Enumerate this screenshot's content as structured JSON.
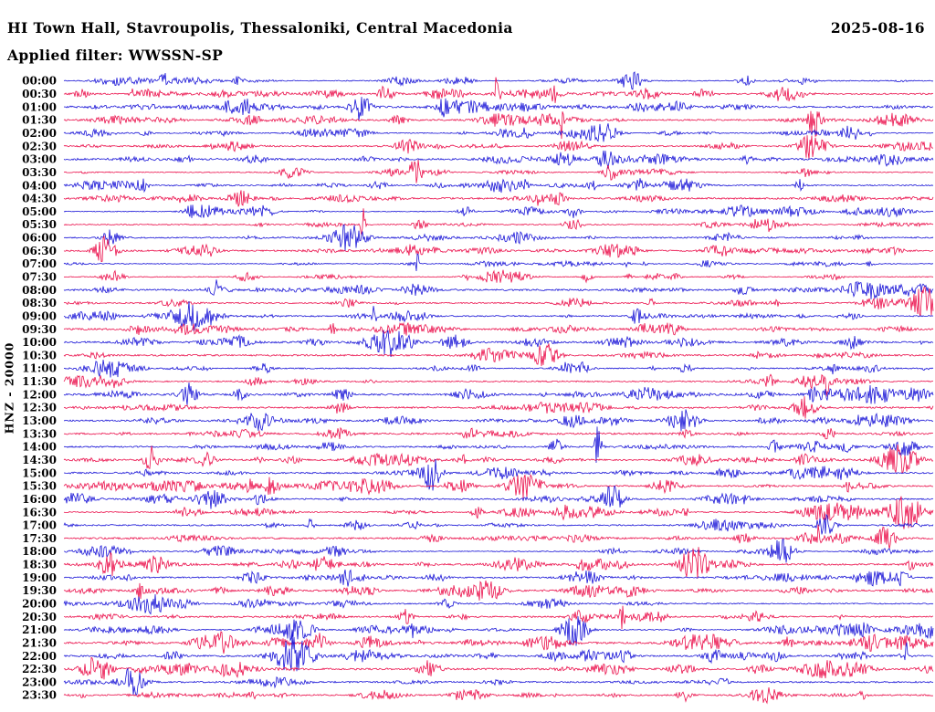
{
  "header": {
    "station_title": "HI Town Hall, Stavroupolis, Thessaloniki, Central Macedonia",
    "date": "2025-08-16",
    "filter_label": "Applied filter: WWSSN-SP"
  },
  "y_axis_label": "HNZ - 20000",
  "chart_data": {
    "type": "line",
    "subtype": "helicorder-seismogram",
    "title": "HI Town Hall, Stavroupolis, Thessaloniki, Central Macedonia",
    "date": "2025-08-16",
    "filter": "WWSSN-SP",
    "channel": "HNZ",
    "scale_label": "20000",
    "minutes_per_row": 30,
    "rows": 48,
    "x_range_per_row_minutes": [
      0,
      30
    ],
    "legend": "none",
    "grid": "off",
    "trace_colors": {
      "even_rows": "#1914d7",
      "odd_rows": "#eb0f4b"
    },
    "row_labels": [
      "00:00",
      "00:30",
      "01:00",
      "01:30",
      "02:00",
      "02:30",
      "03:00",
      "03:30",
      "04:00",
      "04:30",
      "05:00",
      "05:30",
      "06:00",
      "06:30",
      "07:00",
      "07:30",
      "08:00",
      "08:30",
      "09:00",
      "09:30",
      "10:00",
      "10:30",
      "11:00",
      "11:30",
      "12:00",
      "12:30",
      "13:00",
      "13:30",
      "14:00",
      "14:30",
      "15:00",
      "15:30",
      "16:00",
      "16:30",
      "17:00",
      "17:30",
      "18:00",
      "18:30",
      "19:00",
      "19:30",
      "20:00",
      "20:30",
      "21:00",
      "21:30",
      "22:00",
      "22:30",
      "23:00",
      "23:30"
    ],
    "waveform": {
      "description": "continuous ambient seismic noise with intermittent spindle-shaped bursts and occasional large spikes bleeding into adjacent rows",
      "seed": 20250816,
      "base_amplitude": 0.6,
      "burst_count_min": 12,
      "burst_count_max": 26,
      "burst_amp_min": 1.2,
      "burst_amp_max": 7.5,
      "burst_halfwidth_min": 3,
      "burst_halfwidth_max": 26,
      "big_event_probability": 0.55,
      "big_event_amp_min": 8,
      "big_event_amp_max": 20,
      "big_event_halfwidth_min": 6,
      "big_event_halfwidth_max": 22,
      "spike_probability": 0.3,
      "spike_amp_min": 13,
      "spike_amp_max": 30,
      "spike_halfwidth_min": 1.2,
      "spike_halfwidth_max": 3.7
    }
  }
}
